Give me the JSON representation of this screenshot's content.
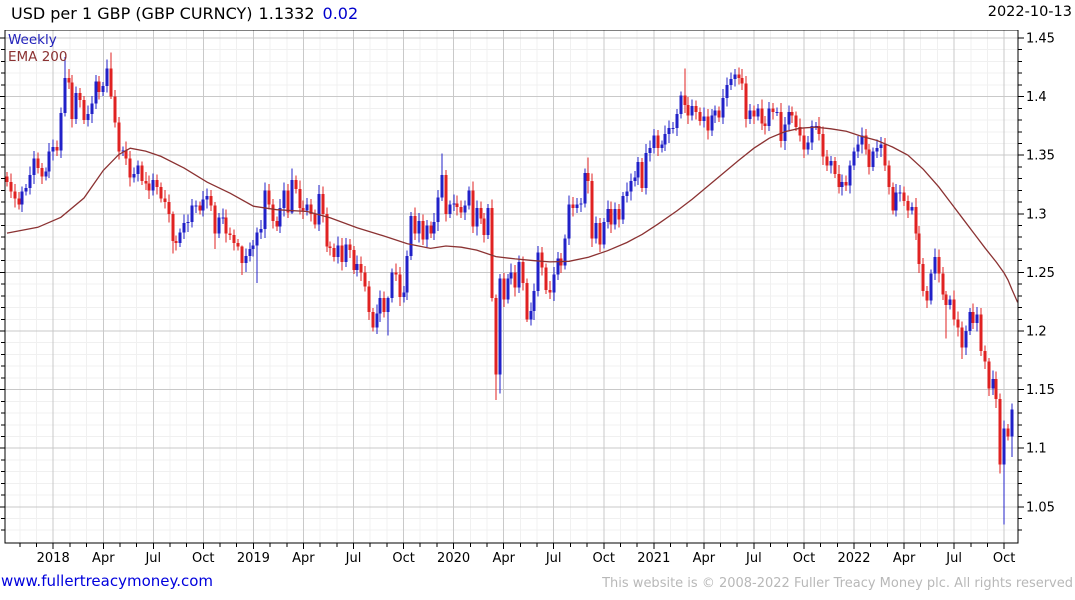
{
  "header": {
    "title": "USD per 1 GBP (GBP CURNCY)",
    "price": "1.1332",
    "change": "0.02",
    "date": "2022-10-13"
  },
  "legend": {
    "timeframe": "Weekly",
    "overlay": "EMA 200"
  },
  "footer": {
    "website": "www.fullertreacymoney.com",
    "copyright": "This website is © 2008-2022 Fuller Treacy Money plc. All rights reserved"
  },
  "chart_data": {
    "type": "candlestick",
    "title": "USD per 1 GBP (GBP CURNCY)",
    "timeframe": "Weekly",
    "overlay": "EMA 200",
    "last_price": 1.1332,
    "change": 0.02,
    "as_of": "2022-10-13",
    "ylim": [
      1.019,
      1.457
    ],
    "grid": true,
    "y_axis": {
      "values": [
        1.45,
        1.4,
        1.35,
        1.3,
        1.25,
        1.2,
        1.15,
        1.1,
        1.05
      ],
      "labels": [
        "1.45",
        "1.4",
        "1.35",
        "1.3",
        "1.25",
        "1.2",
        "1.15",
        "1.1",
        "1.05"
      ]
    },
    "x_axis": {
      "weeks": [
        12,
        25,
        38,
        51,
        64,
        77,
        90,
        103,
        116,
        129,
        142,
        155,
        168,
        181,
        194,
        207,
        220,
        233,
        246,
        259
      ],
      "labels": [
        "2018",
        "Apr",
        "Jul",
        "Oct",
        "2019",
        "Apr",
        "Jul",
        "Oct",
        "2020",
        "Apr",
        "Jul",
        "Oct",
        "2021",
        "Apr",
        "Jul",
        "Oct",
        "2022",
        "Apr",
        "Jul",
        "Oct"
      ]
    },
    "first_open": 1.332,
    "closes": [
      1.327,
      1.319,
      1.313,
      1.308,
      1.319,
      1.322,
      1.333,
      1.347,
      1.339,
      1.332,
      1.336,
      1.353,
      1.357,
      1.354,
      1.386,
      1.416,
      1.412,
      1.381,
      1.403,
      1.397,
      1.38,
      1.385,
      1.394,
      1.413,
      1.404,
      1.409,
      1.424,
      1.4,
      1.378,
      1.353,
      1.354,
      1.347,
      1.331,
      1.334,
      1.341,
      1.328,
      1.326,
      1.32,
      1.329,
      1.323,
      1.313,
      1.31,
      1.3,
      1.277,
      1.275,
      1.284,
      1.292,
      1.293,
      1.307,
      1.307,
      1.303,
      1.312,
      1.315,
      1.307,
      1.283,
      1.297,
      1.297,
      1.283,
      1.282,
      1.275,
      1.272,
      1.258,
      1.264,
      1.27,
      1.273,
      1.284,
      1.287,
      1.32,
      1.308,
      1.294,
      1.289,
      1.305,
      1.32,
      1.301,
      1.329,
      1.321,
      1.305,
      1.303,
      1.308,
      1.3,
      1.291,
      1.317,
      1.3,
      1.272,
      1.271,
      1.263,
      1.273,
      1.259,
      1.274,
      1.269,
      1.252,
      1.257,
      1.25,
      1.238,
      1.216,
      1.203,
      1.215,
      1.228,
      1.216,
      1.228,
      1.25,
      1.248,
      1.229,
      1.233,
      1.264,
      1.298,
      1.283,
      1.294,
      1.278,
      1.29,
      1.283,
      1.293,
      1.314,
      1.333,
      1.3,
      1.308,
      1.309,
      1.306,
      1.301,
      1.307,
      1.32,
      1.289,
      1.305,
      1.296,
      1.282,
      1.305,
      1.228,
      1.163,
      1.245,
      1.227,
      1.245,
      1.25,
      1.237,
      1.259,
      1.241,
      1.21,
      1.217,
      1.234,
      1.267,
      1.254,
      1.235,
      1.233,
      1.248,
      1.262,
      1.256,
      1.279,
      1.308,
      1.305,
      1.308,
      1.309,
      1.335,
      1.328,
      1.279,
      1.292,
      1.274,
      1.293,
      1.304,
      1.291,
      1.304,
      1.295,
      1.315,
      1.319,
      1.328,
      1.331,
      1.344,
      1.322,
      1.352,
      1.356,
      1.367,
      1.356,
      1.359,
      1.368,
      1.373,
      1.373,
      1.385,
      1.401,
      1.393,
      1.384,
      1.392,
      1.387,
      1.379,
      1.383,
      1.371,
      1.384,
      1.388,
      1.382,
      1.399,
      1.41,
      1.415,
      1.419,
      1.416,
      1.411,
      1.381,
      1.388,
      1.383,
      1.39,
      1.377,
      1.375,
      1.39,
      1.387,
      1.387,
      1.362,
      1.376,
      1.387,
      1.384,
      1.374,
      1.367,
      1.355,
      1.361,
      1.375,
      1.375,
      1.368,
      1.349,
      1.341,
      1.345,
      1.334,
      1.323,
      1.327,
      1.324,
      1.341,
      1.353,
      1.359,
      1.367,
      1.355,
      1.34,
      1.353,
      1.356,
      1.359,
      1.341,
      1.323,
      1.303,
      1.318,
      1.318,
      1.311,
      1.303,
      1.306,
      1.283,
      1.257,
      1.234,
      1.226,
      1.249,
      1.263,
      1.249,
      1.231,
      1.222,
      1.227,
      1.21,
      1.203,
      1.186,
      1.2,
      1.216,
      1.207,
      1.214,
      1.183,
      1.174,
      1.151,
      1.159,
      1.142,
      1.086,
      1.117,
      1.11,
      1.133
    ],
    "wick_overrides": {
      "15": [
        1.434,
        1.383
      ],
      "27": [
        1.4375,
        1.398
      ],
      "43": [
        1.302,
        1.266
      ],
      "54": [
        1.31,
        1.27
      ],
      "61": [
        1.273,
        1.2478
      ],
      "65": [
        1.2885,
        1.2409
      ],
      "74": [
        1.3385,
        1.3
      ],
      "99": [
        1.2295,
        1.196
      ],
      "113": [
        1.3515,
        1.311
      ],
      "126": [
        1.312,
        1.225
      ],
      "127": [
        1.231,
        1.1412
      ],
      "128": [
        1.2485,
        1.1466
      ],
      "135": [
        1.2448,
        1.2075
      ],
      "151": [
        1.3482,
        1.3175
      ],
      "176": [
        1.424,
        1.386
      ],
      "190": [
        1.425,
        1.4105
      ],
      "244": [
        1.234,
        1.1934
      ],
      "248": [
        1.208,
        1.176
      ],
      "255": [
        1.177,
        1.1445
      ],
      "258": [
        1.1465,
        1.0785
      ],
      "259": [
        1.1235,
        1.035
      ],
      "261": [
        1.138,
        1.0925
      ]
    },
    "ema200_anchors": [
      [
        0,
        1.2835
      ],
      [
        8,
        1.2885
      ],
      [
        14,
        1.297
      ],
      [
        20,
        1.3135
      ],
      [
        25,
        1.337
      ],
      [
        29,
        1.3505
      ],
      [
        32,
        1.356
      ],
      [
        36,
        1.3535
      ],
      [
        40,
        1.349
      ],
      [
        46,
        1.339
      ],
      [
        52,
        1.327
      ],
      [
        58,
        1.3175
      ],
      [
        64,
        1.3065
      ],
      [
        70,
        1.3035
      ],
      [
        78,
        1.302
      ],
      [
        84,
        1.2965
      ],
      [
        91,
        1.288
      ],
      [
        98,
        1.281
      ],
      [
        104,
        1.2745
      ],
      [
        110,
        1.2705
      ],
      [
        114,
        1.2725
      ],
      [
        118,
        1.2715
      ],
      [
        122,
        1.269
      ],
      [
        127,
        1.2635
      ],
      [
        132,
        1.2615
      ],
      [
        137,
        1.26
      ],
      [
        141,
        1.259
      ],
      [
        146,
        1.2595
      ],
      [
        151,
        1.263
      ],
      [
        156,
        1.2685
      ],
      [
        161,
        1.2755
      ],
      [
        165,
        1.2825
      ],
      [
        169,
        1.291
      ],
      [
        174,
        1.3025
      ],
      [
        178,
        1.3125
      ],
      [
        182,
        1.3235
      ],
      [
        186,
        1.3345
      ],
      [
        190,
        1.3455
      ],
      [
        194,
        1.356
      ],
      [
        198,
        1.3645
      ],
      [
        202,
        1.37
      ],
      [
        206,
        1.373
      ],
      [
        210,
        1.374
      ],
      [
        214,
        1.3725
      ],
      [
        218,
        1.3705
      ],
      [
        222,
        1.366
      ],
      [
        226,
        1.3625
      ],
      [
        230,
        1.357
      ],
      [
        234,
        1.35
      ],
      [
        238,
        1.338
      ],
      [
        242,
        1.323
      ],
      [
        245,
        1.31
      ],
      [
        248,
        1.297
      ],
      [
        251,
        1.284
      ],
      [
        254,
        1.271
      ],
      [
        257,
        1.2585
      ],
      [
        259,
        1.2495
      ],
      [
        260,
        1.2435
      ],
      [
        261,
        1.2355
      ],
      [
        262.5,
        1.2245
      ]
    ],
    "colors": {
      "up": "#2121c8",
      "down": "#e02222",
      "ema": "#8b3232",
      "grid_major": "#c9c9c9",
      "grid_minor": "#f0f0f0",
      "axis": "#000000",
      "change_text": "#0000cc"
    }
  }
}
